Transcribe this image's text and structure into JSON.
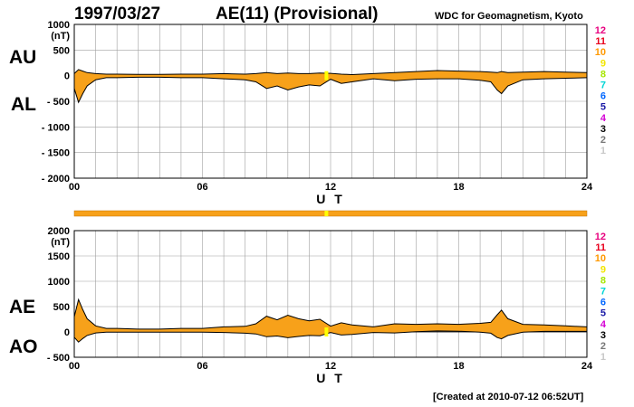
{
  "header": {
    "date": "1997/03/27",
    "title": "AE(11) (Provisional)",
    "source": "WDC for Geomagnetism, Kyoto"
  },
  "labels": {
    "au": "AU",
    "al": "AL",
    "ae": "AE",
    "ao": "AO",
    "unit": "(nT)"
  },
  "footer": {
    "created": "[Created at 2010-07-12 06:52UT]"
  },
  "colors": {
    "fill": "#f7a11a",
    "station_marker": "#ffff00",
    "grid": "#a0a0a0",
    "station_bar": "#f7a11a"
  },
  "station_counts": [
    {
      "label": "12",
      "color": "#e8007f"
    },
    {
      "label": "11",
      "color": "#e8001c"
    },
    {
      "label": "10",
      "color": "#ff9900"
    },
    {
      "label": "9",
      "color": "#f2e600"
    },
    {
      "label": "8",
      "color": "#a6e600"
    },
    {
      "label": "7",
      "color": "#00d5d5"
    },
    {
      "label": "6",
      "color": "#0066ff"
    },
    {
      "label": "5",
      "color": "#1a1aa6"
    },
    {
      "label": "4",
      "color": "#d400d4"
    },
    {
      "label": "3",
      "color": "#000000"
    },
    {
      "label": "2",
      "color": "#777777"
    },
    {
      "label": "1",
      "color": "#c8c8c8"
    }
  ],
  "chart_data": [
    {
      "type": "area",
      "name": "AU/AL",
      "xlabel": "U T",
      "xlim": [
        0,
        24
      ],
      "xticks": [
        "00",
        "06",
        "12",
        "18",
        "24"
      ],
      "ylim": [
        -2000,
        1000
      ],
      "yticks": [
        "1000",
        "500",
        "0",
        "- 500",
        "- 1000",
        "- 1500",
        "- 2000"
      ],
      "ytick_values": [
        1000,
        500,
        0,
        -500,
        -1000,
        -1500,
        -2000
      ],
      "grid": true,
      "x": [
        0,
        0.2,
        0.4,
        0.6,
        1,
        1.5,
        2,
        3,
        4,
        5,
        6,
        7,
        8,
        8.5,
        9,
        9.5,
        10,
        10.5,
        11,
        11.5,
        12,
        12.5,
        13,
        14,
        15,
        16,
        17,
        18,
        19,
        19.5,
        19.8,
        20,
        20.3,
        21,
        22,
        23,
        24
      ],
      "series": [
        {
          "name": "AU",
          "values": [
            40,
            120,
            90,
            60,
            40,
            30,
            30,
            25,
            25,
            30,
            30,
            40,
            30,
            40,
            60,
            40,
            50,
            40,
            40,
            50,
            45,
            30,
            20,
            40,
            60,
            80,
            100,
            90,
            80,
            70,
            60,
            80,
            60,
            70,
            80,
            70,
            60
          ]
        },
        {
          "name": "AL",
          "values": [
            -250,
            -520,
            -350,
            -200,
            -80,
            -40,
            -40,
            -30,
            -30,
            -40,
            -40,
            -60,
            -80,
            -120,
            -250,
            -200,
            -280,
            -220,
            -180,
            -200,
            -70,
            -150,
            -120,
            -60,
            -100,
            -70,
            -60,
            -60,
            -90,
            -120,
            -280,
            -350,
            -200,
            -80,
            -60,
            -50,
            -40
          ]
        }
      ]
    },
    {
      "type": "area",
      "name": "AE/AO",
      "xlabel": "U T",
      "xlim": [
        0,
        24
      ],
      "xticks": [
        "00",
        "06",
        "12",
        "18",
        "24"
      ],
      "ylim": [
        -500,
        2000
      ],
      "yticks": [
        "2000",
        "1500",
        "1000",
        "500",
        "0",
        "- 500"
      ],
      "ytick_values": [
        2000,
        1500,
        1000,
        500,
        0,
        -500
      ],
      "grid": true,
      "x": [
        0,
        0.2,
        0.4,
        0.6,
        1,
        1.5,
        2,
        3,
        4,
        5,
        6,
        7,
        8,
        8.5,
        9,
        9.5,
        10,
        10.5,
        11,
        11.5,
        12,
        12.5,
        13,
        14,
        15,
        16,
        17,
        18,
        19,
        19.5,
        19.8,
        20,
        20.3,
        21,
        22,
        23,
        24
      ],
      "series": [
        {
          "name": "AE",
          "values": [
            300,
            640,
            440,
            260,
            120,
            70,
            70,
            55,
            55,
            70,
            70,
            100,
            110,
            160,
            310,
            240,
            330,
            260,
            220,
            250,
            115,
            180,
            140,
            100,
            160,
            150,
            160,
            150,
            170,
            190,
            340,
            430,
            260,
            150,
            140,
            120,
            100
          ]
        },
        {
          "name": "AO",
          "values": [
            -105,
            -200,
            -130,
            -70,
            -20,
            -5,
            -5,
            -3,
            -3,
            -5,
            -5,
            -10,
            -25,
            -40,
            -95,
            -80,
            -115,
            -90,
            -70,
            -75,
            -13,
            -60,
            -50,
            -10,
            -20,
            5,
            20,
            15,
            -5,
            -25,
            -110,
            -135,
            -70,
            -5,
            10,
            10,
            10
          ]
        }
      ]
    }
  ]
}
